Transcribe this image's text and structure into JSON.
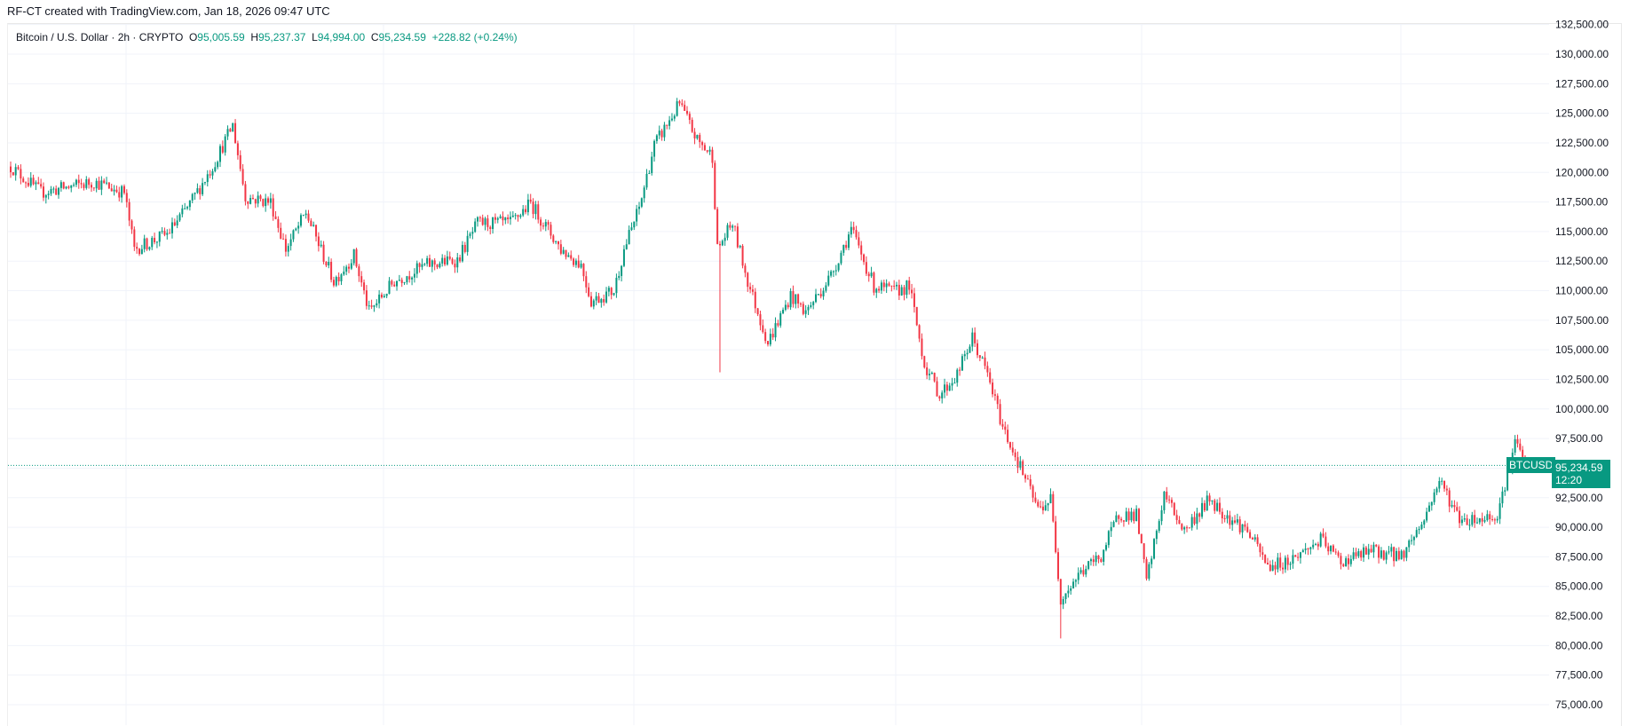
{
  "credit": "RF-CT created with TradingView.com, Jan 18, 2026 09:47 UTC",
  "legend": {
    "symbol": "Bitcoin / U.S. Dollar · 2h · CRYPTO",
    "open_label": "O",
    "open": "95,005.59",
    "high_label": "H",
    "high": "95,237.37",
    "low_label": "L",
    "low": "94,994.00",
    "close_label": "C",
    "close": "95,234.59",
    "change": "+228.82 (+0.24%)"
  },
  "last_price": {
    "symbol": "BTCUSD",
    "price": "95,234.59",
    "countdown": "12:20"
  },
  "chart_data": {
    "type": "candlestick",
    "title": "",
    "interval": "2h",
    "up_color": "#089981",
    "down_color": "#f23645",
    "grid": true,
    "y_axis_side": "right",
    "ylim": [
      73000,
      133000
    ],
    "y_ticks": [
      "132,500.00",
      "130,000.00",
      "127,500.00",
      "125,000.00",
      "122,500.00",
      "120,000.00",
      "117,500.00",
      "115,000.00",
      "112,500.00",
      "110,000.00",
      "107,500.00",
      "105,000.00",
      "102,500.00",
      "100,000.00",
      "97,500.00",
      "95,000.00",
      "92,500.00",
      "90,000.00",
      "87,500.00",
      "85,000.00",
      "82,500.00",
      "80,000.00",
      "77,500.00",
      "75,000.00"
    ],
    "last_close": 95234.59,
    "approx_close_path_by_bar": [
      [
        0,
        120500
      ],
      [
        12,
        118300
      ],
      [
        33,
        119200
      ],
      [
        45,
        118300
      ],
      [
        49,
        113500
      ],
      [
        62,
        114800
      ],
      [
        70,
        117000
      ],
      [
        80,
        120500
      ],
      [
        88,
        124000
      ],
      [
        93,
        117900
      ],
      [
        103,
        117500
      ],
      [
        109,
        113500
      ],
      [
        117,
        116600
      ],
      [
        128,
        110800
      ],
      [
        136,
        113000
      ],
      [
        142,
        108200
      ],
      [
        152,
        110800
      ],
      [
        165,
        112200
      ],
      [
        177,
        112600
      ],
      [
        185,
        115700
      ],
      [
        198,
        115700
      ],
      [
        206,
        117400
      ],
      [
        218,
        113500
      ],
      [
        226,
        112200
      ],
      [
        230,
        109100
      ],
      [
        239,
        110000
      ],
      [
        243,
        113500
      ],
      [
        249,
        117000
      ],
      [
        255,
        122300
      ],
      [
        265,
        125800
      ],
      [
        272,
        122700
      ],
      [
        278,
        121400
      ],
      [
        280,
        113500
      ],
      [
        286,
        115700
      ],
      [
        292,
        110800
      ],
      [
        300,
        105600
      ],
      [
        309,
        109600
      ],
      [
        315,
        108200
      ],
      [
        325,
        111300
      ],
      [
        333,
        115200
      ],
      [
        342,
        110400
      ],
      [
        350,
        109900
      ],
      [
        356,
        110400
      ],
      [
        362,
        103800
      ],
      [
        368,
        101200
      ],
      [
        375,
        102900
      ],
      [
        381,
        106000
      ],
      [
        387,
        102900
      ],
      [
        393,
        98500
      ],
      [
        401,
        94600
      ],
      [
        407,
        91500
      ],
      [
        412,
        92400
      ],
      [
        416,
        84000
      ],
      [
        424,
        86200
      ],
      [
        432,
        87600
      ],
      [
        439,
        91100
      ],
      [
        446,
        91000
      ],
      [
        450,
        85400
      ],
      [
        457,
        92800
      ],
      [
        465,
        89700
      ],
      [
        475,
        92400
      ],
      [
        481,
        91100
      ],
      [
        490,
        89700
      ],
      [
        498,
        86700
      ],
      [
        506,
        87100
      ],
      [
        519,
        88900
      ],
      [
        527,
        87100
      ],
      [
        539,
        88000
      ],
      [
        551,
        87600
      ],
      [
        560,
        90700
      ],
      [
        566,
        94000
      ],
      [
        574,
        90700
      ],
      [
        582,
        90700
      ],
      [
        589,
        91100
      ],
      [
        593,
        94600
      ],
      [
        596,
        97200
      ],
      [
        600,
        95234.59
      ]
    ],
    "notable_wicks": [
      {
        "bar": 266,
        "high": 126100
      },
      {
        "bar": 281,
        "low": 103100
      },
      {
        "bar": 416,
        "low": 80600
      },
      {
        "bar": 596,
        "high": 97800
      }
    ]
  }
}
